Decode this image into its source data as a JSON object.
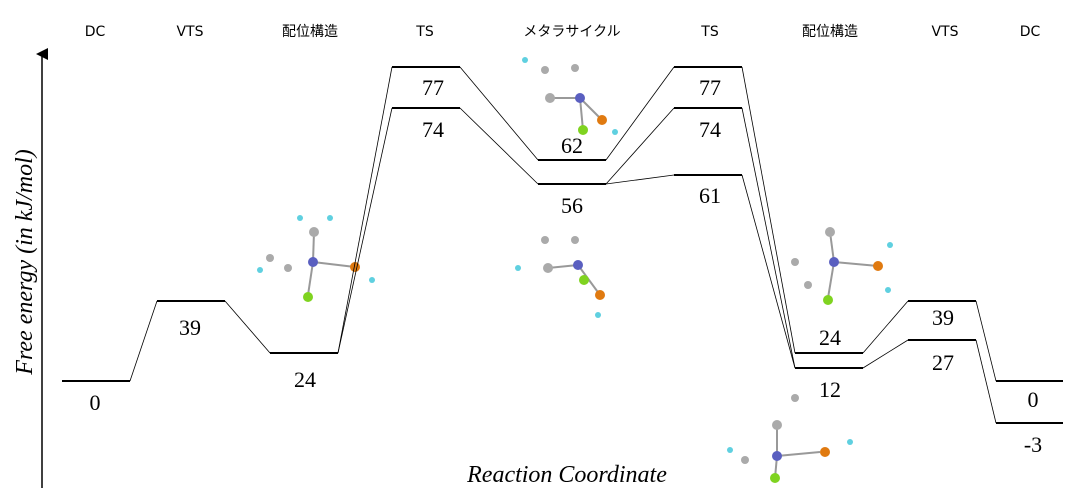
{
  "header": {
    "columns": [
      "DC",
      "VTS",
      "配位構造",
      "TS",
      "メタラサイクル",
      "TS",
      "配位構造",
      "VTS",
      "DC"
    ]
  },
  "y_axis_label": "Free energy (in kJ/mol)",
  "x_axis_label": "Reaction Coordinate",
  "levels": [
    0,
    39,
    24,
    77,
    74,
    62,
    56,
    77,
    74,
    61,
    24,
    12,
    39,
    27,
    0,
    -3
  ]
}
